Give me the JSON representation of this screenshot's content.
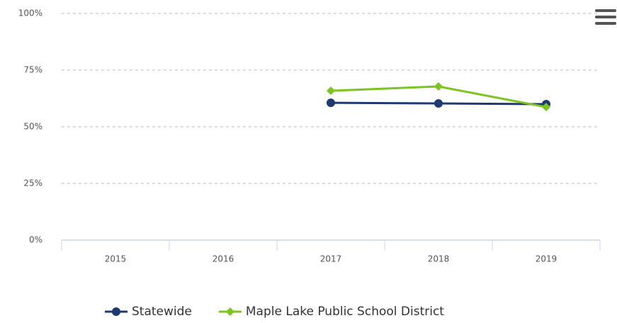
{
  "chart_data": {
    "type": "line",
    "categories": [
      "2015",
      "2016",
      "2017",
      "2018",
      "2019"
    ],
    "series": [
      {
        "name": "Statewide",
        "color": "#1f3a70",
        "marker": "circle",
        "values": [
          null,
          null,
          60.6,
          60.3,
          60.0
        ]
      },
      {
        "name": "Maple Lake Public School District",
        "color": "#7cc520",
        "marker": "diamond",
        "values": [
          null,
          null,
          65.9,
          67.8,
          58.7
        ]
      }
    ],
    "ylim": [
      0,
      100
    ],
    "yticks": [
      {
        "value": 0,
        "label": "0%"
      },
      {
        "value": 25,
        "label": "25%"
      },
      {
        "value": 50,
        "label": "50%"
      },
      {
        "value": 75,
        "label": "75%"
      },
      {
        "value": 100,
        "label": "100%"
      }
    ],
    "grid": true,
    "legend": "bottom"
  }
}
